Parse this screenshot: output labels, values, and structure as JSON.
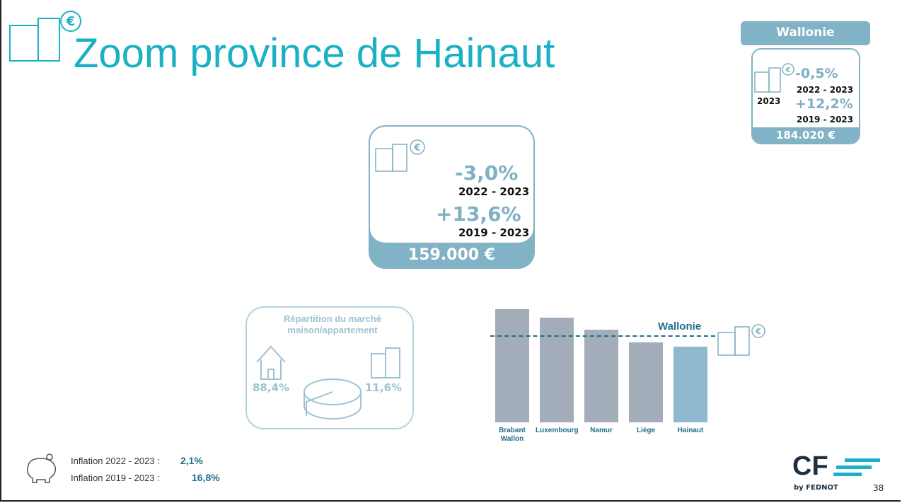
{
  "header": {
    "title": "Zoom province de Hainaut"
  },
  "wallonie_card": {
    "title": "Wallonie",
    "change_1": "-0,5%",
    "period_1": "2022 - 2023",
    "year": "2023",
    "change_2": "+12,2%",
    "period_2": "2019 - 2023",
    "price": "184.020 €"
  },
  "main_card": {
    "change_1": "-3,0%",
    "period_1": "2022 - 2023",
    "change_2": "+13,6%",
    "period_2": "2019 - 2023",
    "price": "159.000 €"
  },
  "market": {
    "title": "Répartition du marché maison/appartement",
    "house": "88,4%",
    "apartment": "11,6%"
  },
  "chart_data": {
    "type": "bar",
    "categories": [
      "Brabant Wallon",
      "Luxembourg",
      "Namur",
      "Liège",
      "Hainaut"
    ],
    "values": [
      239000,
      221000,
      196000,
      169000,
      159000
    ],
    "colors": [
      "#a3acb9",
      "#a3acb9",
      "#a3acb9",
      "#a3acb9",
      "#8fb8cf"
    ],
    "ylim": [
      0,
      240000
    ],
    "reference": {
      "name": "Wallonie",
      "value": 184000,
      "color": "#1f6e8c"
    }
  },
  "inflation": [
    {
      "label": "Inflation 2022 - 2023 :",
      "value": "2,1%"
    },
    {
      "label": "Inflation 2019 - 2023 :",
      "value": "16,8%"
    }
  ],
  "footer": {
    "logo": "CF",
    "sub": "by FEDNOT",
    "page": "38"
  }
}
